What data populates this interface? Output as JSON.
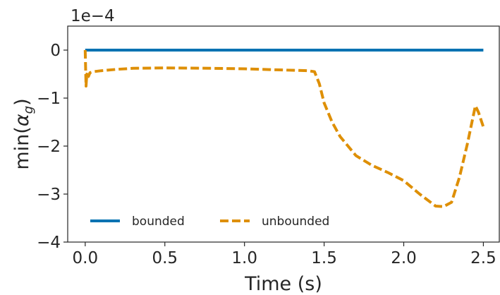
{
  "chart_data": {
    "type": "line",
    "xlabel": "Time (s)",
    "ylabel_main": "min(",
    "ylabel_symbol": "α",
    "ylabel_subscript": "g",
    "ylabel_close": ")",
    "y_offset_text": "1e−4",
    "xlim": [
      -0.11,
      2.6
    ],
    "ylim": [
      -4,
      0.5
    ],
    "x_ticks": [
      0.0,
      0.5,
      1.0,
      1.5,
      2.0,
      2.5
    ],
    "x_tick_labels": [
      "0.0",
      "0.5",
      "1.0",
      "1.5",
      "2.0",
      "2.5"
    ],
    "y_ticks": [
      0,
      -1,
      -2,
      -3,
      -4
    ],
    "y_tick_labels": [
      "0",
      "−1",
      "−2",
      "−3",
      "−4"
    ],
    "grid": false,
    "legend_position": "bottom-left",
    "series": [
      {
        "name": "bounded",
        "color": "#0072b2",
        "style": "solid",
        "x": [
          0.0,
          2.5
        ],
        "y": [
          0.0,
          0.0
        ]
      },
      {
        "name": "unbounded",
        "color": "#de8f05",
        "style": "dashed",
        "x": [
          0.0,
          0.005,
          0.01,
          0.02,
          0.03,
          0.05,
          0.1,
          0.2,
          0.3,
          0.5,
          0.8,
          1.0,
          1.2,
          1.4,
          1.44,
          1.47,
          1.5,
          1.55,
          1.6,
          1.7,
          1.8,
          1.9,
          2.0,
          2.1,
          2.2,
          2.25,
          2.3,
          2.35,
          2.4,
          2.45,
          2.47,
          2.5
        ],
        "y": [
          0.0,
          -0.75,
          -0.5,
          -0.55,
          -0.47,
          -0.45,
          -0.43,
          -0.4,
          -0.38,
          -0.37,
          -0.38,
          -0.39,
          -0.41,
          -0.43,
          -0.45,
          -0.7,
          -1.1,
          -1.5,
          -1.8,
          -2.2,
          -2.4,
          -2.55,
          -2.72,
          -3.0,
          -3.25,
          -3.26,
          -3.17,
          -2.65,
          -1.95,
          -1.16,
          -1.3,
          -1.6
        ]
      }
    ]
  }
}
